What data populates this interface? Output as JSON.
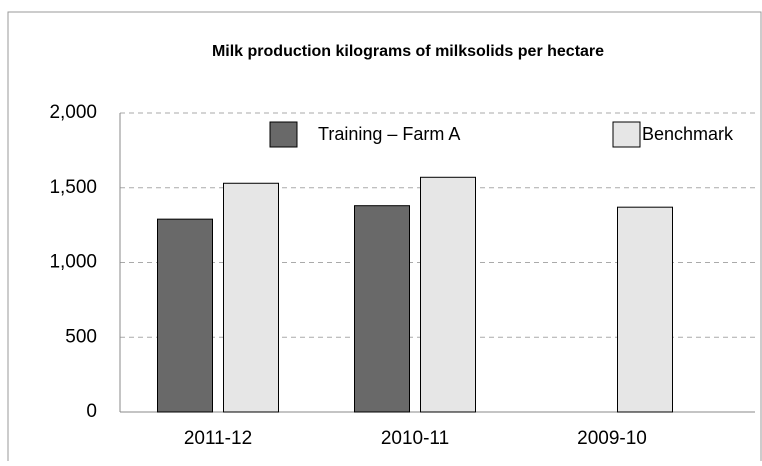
{
  "chart_data": {
    "type": "bar",
    "title": "Milk production kilograms of milksolids per hectare",
    "categories": [
      "2011-12",
      "2010-11",
      "2009-10"
    ],
    "series": [
      {
        "name": "Training – Farm A",
        "color": "#696969",
        "values": [
          1290,
          1380,
          null
        ]
      },
      {
        "name": "Benchmark",
        "color": "#e6e6e6",
        "values": [
          1530,
          1570,
          1370
        ]
      }
    ],
    "ylim": [
      0,
      2000
    ],
    "yticks": [
      0,
      500,
      {
        "value": 1000,
        "label": "1,000"
      },
      {
        "value": 1500,
        "label": "1,500"
      },
      {
        "value": 2000,
        "label": "2,000"
      }
    ],
    "grid": true,
    "legend": "top"
  }
}
